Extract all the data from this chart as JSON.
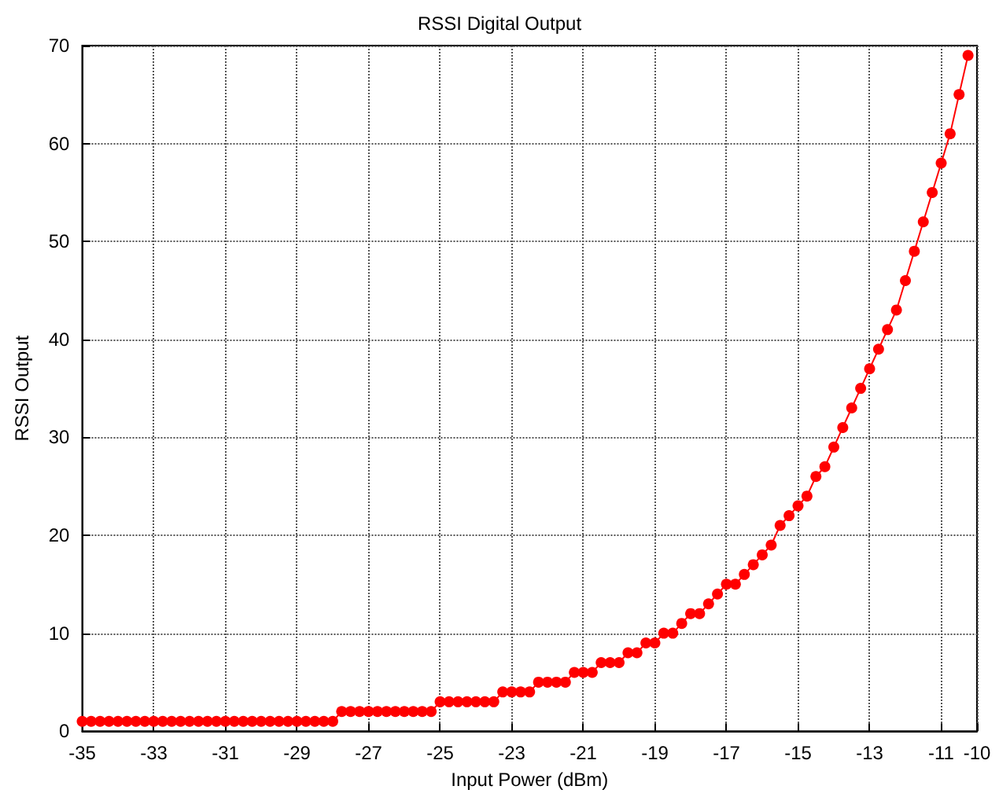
{
  "chart_data": {
    "type": "line",
    "title": "RSSI Digital Output",
    "xlabel": "Input Power (dBm)",
    "ylabel": "RSSI Output",
    "x": [
      -35,
      -34.75,
      -34.5,
      -34.25,
      -34,
      -33.75,
      -33.5,
      -33.25,
      -33,
      -32.75,
      -32.5,
      -32.25,
      -32,
      -31.75,
      -31.5,
      -31.25,
      -31,
      -30.75,
      -30.5,
      -30.25,
      -30,
      -29.75,
      -29.5,
      -29.25,
      -29,
      -28.75,
      -28.5,
      -28.25,
      -28,
      -27.75,
      -27.5,
      -27.25,
      -27,
      -26.75,
      -26.5,
      -26.25,
      -26,
      -25.75,
      -25.5,
      -25.25,
      -25,
      -24.75,
      -24.5,
      -24.25,
      -24,
      -23.75,
      -23.5,
      -23.25,
      -23,
      -22.75,
      -22.5,
      -22.25,
      -22,
      -21.75,
      -21.5,
      -21.25,
      -21,
      -20.75,
      -20.5,
      -20.25,
      -20,
      -19.75,
      -19.5,
      -19.25,
      -19,
      -18.75,
      -18.5,
      -18.25,
      -18,
      -17.75,
      -17.5,
      -17.25,
      -17,
      -16.75,
      -16.5,
      -16.25,
      -16,
      -15.75,
      -15.5,
      -15.25,
      -15,
      -14.75,
      -14.5,
      -14.25,
      -14,
      -13.75,
      -13.5,
      -13.25,
      -13,
      -12.75,
      -12.5,
      -12.25,
      -12,
      -11.75,
      -11.5,
      -11.25,
      -11,
      -10.75,
      -10.5,
      -10.25
    ],
    "series": [
      {
        "color": "#ff0000",
        "values": [
          1,
          1,
          1,
          1,
          1,
          1,
          1,
          1,
          1,
          1,
          1,
          1,
          1,
          1,
          1,
          1,
          1,
          1,
          1,
          1,
          1,
          1,
          1,
          1,
          1,
          1,
          1,
          1,
          1,
          2,
          2,
          2,
          2,
          2,
          2,
          2,
          2,
          2,
          2,
          2,
          3,
          3,
          3,
          3,
          3,
          3,
          3,
          4,
          4,
          4,
          4,
          5,
          5,
          5,
          5,
          6,
          6,
          6,
          7,
          7,
          7,
          8,
          8,
          9,
          9,
          10,
          10,
          11,
          12,
          12,
          13,
          14,
          15,
          15,
          16,
          17,
          18,
          19,
          21,
          22,
          23,
          24,
          26,
          27,
          29,
          31,
          33,
          35,
          37,
          39,
          41,
          43,
          46,
          49,
          52,
          55,
          58,
          61,
          65,
          69
        ]
      }
    ],
    "xlim": [
      -35,
      -10
    ],
    "xticks": [
      -35,
      -33,
      -31,
      -29,
      -27,
      -25,
      -23,
      -21,
      -19,
      -17,
      -15,
      -13,
      -11,
      -10
    ],
    "ylim": [
      0,
      70
    ],
    "yticks": [
      0,
      10,
      20,
      30,
      40,
      50,
      60,
      70
    ],
    "grid": true,
    "marker": "circle",
    "line_style": "solid"
  }
}
